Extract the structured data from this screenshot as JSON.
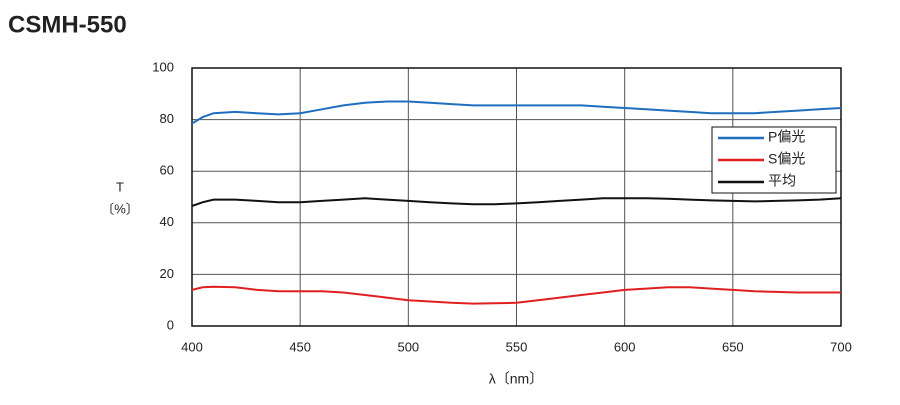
{
  "chart_data": {
    "type": "line",
    "title": "CSMH-550",
    "xlabel": "λ〔nm〕",
    "ylabel": "T",
    "yunit": "〔%〕",
    "x": [
      400,
      405,
      410,
      420,
      430,
      440,
      450,
      460,
      470,
      480,
      490,
      500,
      510,
      520,
      530,
      540,
      550,
      560,
      570,
      580,
      590,
      600,
      610,
      620,
      630,
      640,
      650,
      660,
      670,
      680,
      690,
      700
    ],
    "series": [
      {
        "name": "P偏光",
        "color": "#1f6fc0",
        "values": [
          78.5,
          81,
          82.5,
          83,
          82.5,
          82,
          82.5,
          84,
          85.5,
          86.5,
          87,
          87,
          86.5,
          86,
          85.5,
          85.5,
          85.5,
          85.5,
          85.5,
          85.5,
          85,
          84.5,
          84,
          83.5,
          83,
          82.5,
          82.5,
          82.5,
          83,
          83.5,
          84,
          84.5
        ]
      },
      {
        "name": "S偏光",
        "color": "#e02020",
        "values": [
          14,
          15,
          15.2,
          15,
          14,
          13.5,
          13.5,
          13.5,
          13,
          12,
          11,
          10,
          9.5,
          9,
          8.7,
          8.8,
          9,
          10,
          11,
          12,
          13,
          14,
          14.5,
          15,
          15,
          14.5,
          14,
          13.5,
          13.2,
          13,
          13,
          13
        ]
      },
      {
        "name": "平均",
        "color": "#111111",
        "values": [
          46.5,
          48,
          49,
          49,
          48.5,
          48,
          48,
          48.5,
          49,
          49.5,
          49,
          48.5,
          48,
          47.5,
          47.2,
          47.2,
          47.5,
          48,
          48.5,
          49,
          49.5,
          49.5,
          49.5,
          49.3,
          49,
          48.7,
          48.5,
          48.3,
          48.5,
          48.7,
          49,
          49.5
        ]
      }
    ],
    "xlim": [
      400,
      700
    ],
    "xticks": [
      400,
      450,
      500,
      550,
      600,
      650,
      700
    ],
    "ylim": [
      0,
      100
    ],
    "yticks": [
      0,
      20,
      40,
      60,
      80,
      100
    ],
    "grid": true
  }
}
